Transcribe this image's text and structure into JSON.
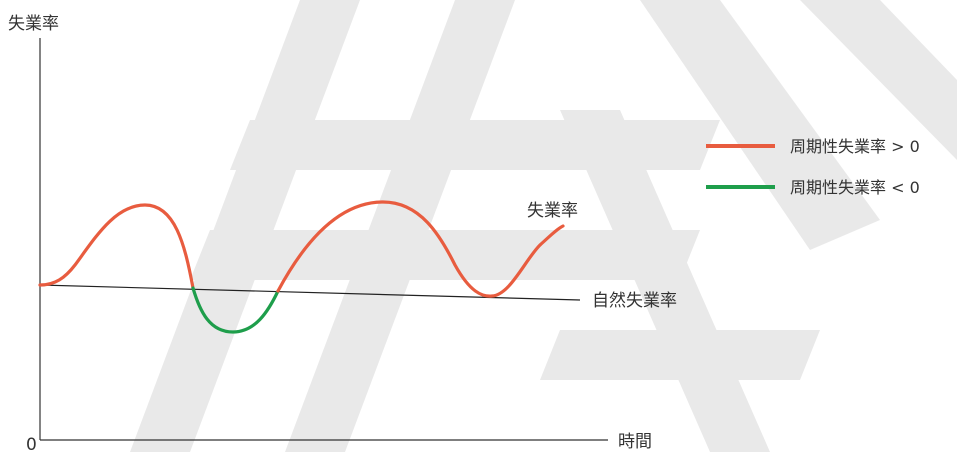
{
  "axes": {
    "y_label": "失業率",
    "x_label": "時間",
    "origin_label": "0"
  },
  "curves": {
    "unemployment_label": "失業率",
    "natural_label": "自然失業率"
  },
  "legend": {
    "items": [
      {
        "label": "周期性失業率 > 0",
        "color": "#e85c3f"
      },
      {
        "label": "周期性失業率 < 0",
        "color": "#1e9e4b"
      }
    ]
  },
  "colors": {
    "positive": "#e85c3f",
    "negative": "#1e9e4b",
    "axis": "#333333",
    "watermark": "#e9e9e9"
  }
}
